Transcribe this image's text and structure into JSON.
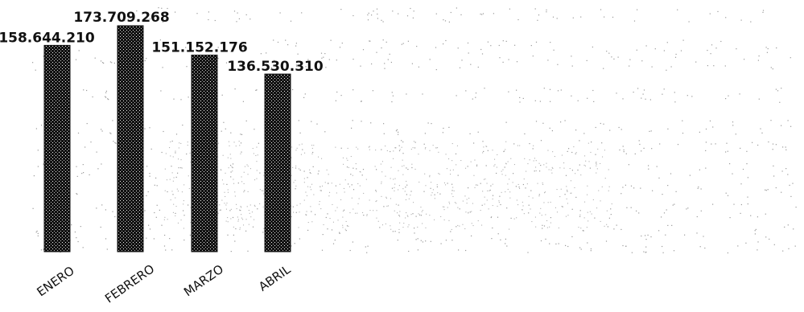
{
  "chart_data": {
    "type": "bar",
    "title": "",
    "xlabel": "",
    "ylabel": "",
    "categories": [
      "ENERO",
      "FEBRERO",
      "MARZO",
      "ABRIL"
    ],
    "values": [
      158644210,
      173709268,
      151152176,
      136530310
    ],
    "value_labels": [
      "158.644.210",
      "173.709.268",
      "151.152.176",
      "136.530.310"
    ],
    "ylim": [
      0,
      173709268
    ],
    "grid": false,
    "legend": "none",
    "colors": {
      "bar": "#111111",
      "bar_speckle": "#f2f2f2",
      "background": "#ffffff",
      "noise": "#9a9a9a"
    }
  }
}
